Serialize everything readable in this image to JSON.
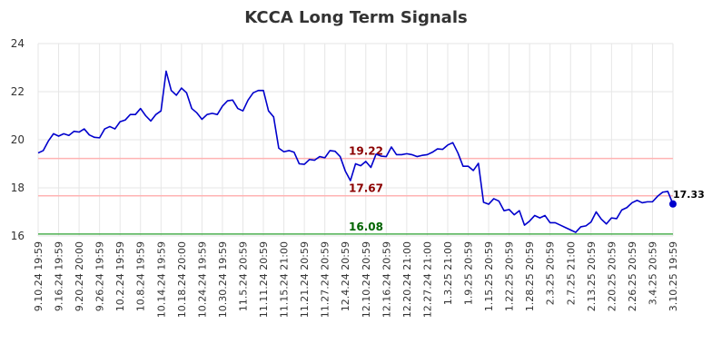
{
  "chart_data": {
    "type": "line",
    "title": "KCCA Long Term Signals",
    "xlabel": "",
    "ylabel": "",
    "ylim": [
      16,
      24
    ],
    "y_ticks": [
      16,
      18,
      20,
      22,
      24
    ],
    "grid": true,
    "colors": {
      "line": "#0000cc",
      "upper_ref": "#ffb3b3",
      "mid_ref": "#ffb3b3",
      "lower_ref": "#4caf50",
      "upper_label": "#8b0000",
      "mid_label": "#8b0000",
      "lower_label": "#006400",
      "last_point": "#0000cc"
    },
    "x_tick_labels": [
      "9.10.24 19:59",
      "9.16.24 19:59",
      "9.20.24 20:00",
      "9.26.24 19:59",
      "10.2.24 19:59",
      "10.8.24 19:59",
      "10.14.24 19:59",
      "10.18.24 20:00",
      "10.24.24 19:59",
      "10.30.24 19:59",
      "11.5.24 20:59",
      "11.11.24 20:59",
      "11.15.24 21:00",
      "11.21.24 20:59",
      "11.27.24 20:59",
      "12.4.24 20:59",
      "12.10.24 20:59",
      "12.16.24 20:59",
      "12.20.24 21:00",
      "12.27.24 21:00",
      "1.3.25 21:00",
      "1.9.25 20:59",
      "1.15.25 20:59",
      "1.22.25 20:59",
      "1.28.25 20:59",
      "2.3.25 20:59",
      "2.7.25 21:00",
      "2.13.25 20:59",
      "2.20.25 20:59",
      "2.26.25 20:59",
      "3.4.25 20:59",
      "3.10.25 19:59"
    ],
    "reference_lines": [
      {
        "value": 19.22,
        "label": "19.22"
      },
      {
        "value": 17.67,
        "label": "17.67"
      },
      {
        "value": 16.08,
        "label": "16.08"
      }
    ],
    "last_value_label": "17.33",
    "series": [
      {
        "values": [
          19.45,
          19.55,
          19.95,
          20.25,
          20.15,
          20.25,
          20.18,
          20.35,
          20.32,
          20.45,
          20.2,
          20.1,
          20.08,
          20.45,
          20.55,
          20.45,
          20.75,
          20.82,
          21.05,
          21.05,
          21.3,
          21.0,
          20.78,
          21.05,
          21.2,
          22.85,
          22.05,
          21.85,
          22.15,
          21.95,
          21.3,
          21.12,
          20.85,
          21.05,
          21.1,
          21.05,
          21.4,
          21.62,
          21.65,
          21.3,
          21.2,
          21.65,
          21.95,
          22.05,
          22.05,
          21.2,
          20.95,
          19.65,
          19.5,
          19.55,
          19.48,
          19.0,
          18.98,
          19.18,
          19.15,
          19.3,
          19.25,
          19.55,
          19.52,
          19.3,
          18.7,
          18.3,
          19.0,
          18.92,
          19.1,
          18.85,
          19.4,
          19.32,
          19.3,
          19.7,
          19.38,
          19.38,
          19.42,
          19.38,
          19.3,
          19.35,
          19.38,
          19.48,
          19.62,
          19.6,
          19.78,
          19.88,
          19.45,
          18.9,
          18.9,
          18.72,
          19.02,
          17.4,
          17.32,
          17.55,
          17.45,
          17.05,
          17.1,
          16.88,
          17.05,
          16.45,
          16.62,
          16.85,
          16.75,
          16.85,
          16.55,
          16.55,
          16.45,
          16.35,
          16.25,
          16.15,
          16.38,
          16.42,
          16.58,
          17.0,
          16.7,
          16.5,
          16.75,
          16.72,
          17.08,
          17.18,
          17.38,
          17.48,
          17.38,
          17.42,
          17.42,
          17.65,
          17.82,
          17.85,
          17.33
        ]
      }
    ]
  }
}
